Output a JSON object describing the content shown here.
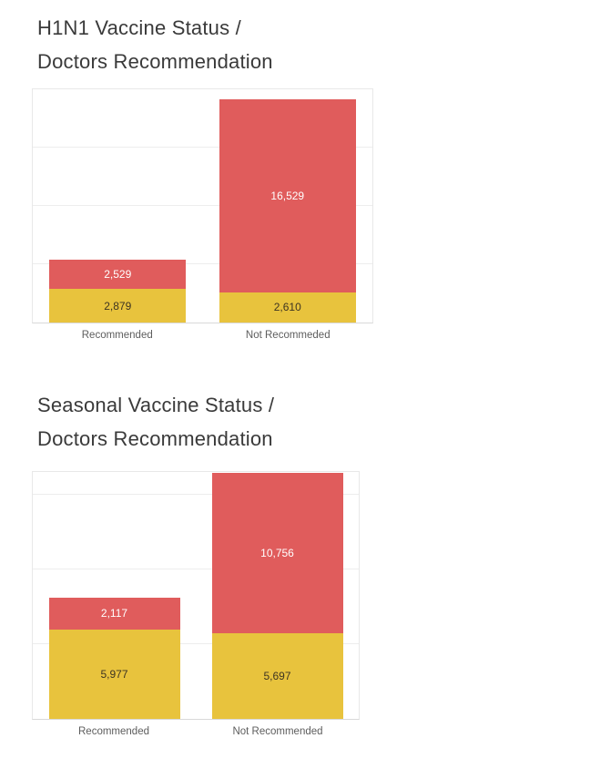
{
  "colors": {
    "red": "#e05c5c",
    "yellow": "#e8c33d",
    "title": "#3a3a3a",
    "category_label": "#5d5d5d",
    "grid": "#ededed",
    "label_on_red": "#ffffff",
    "label_on_yellow": "#3d3422"
  },
  "chart_data": [
    {
      "type": "bar",
      "stacked": true,
      "title_lines": [
        "H1N1 Vaccine Status /",
        "Doctors Recommendation"
      ],
      "categories": [
        "Recommended",
        "Not Recommeded"
      ],
      "series": [
        {
          "name": "bottom-yellow-segment",
          "color_key": "yellow",
          "label_color_key": "label_on_yellow",
          "values": [
            2879,
            2610
          ],
          "labels": [
            "2,879",
            "2,610"
          ]
        },
        {
          "name": "top-red-segment",
          "color_key": "red",
          "label_color_key": "label_on_red",
          "values": [
            2529,
            16529
          ],
          "labels": [
            "2,529",
            "16,529"
          ]
        }
      ],
      "ylim": [
        0,
        20000
      ],
      "grid_step": 5000,
      "grid": true,
      "legend": "none"
    },
    {
      "type": "bar",
      "stacked": true,
      "title_lines": [
        "Seasonal Vaccine Status /",
        "Doctors Recommendation"
      ],
      "categories": [
        "Recommended",
        "Not Recommended"
      ],
      "series": [
        {
          "name": "bottom-yellow-segment",
          "color_key": "yellow",
          "label_color_key": "label_on_yellow",
          "values": [
            5977,
            5697
          ],
          "labels": [
            "5,977",
            "5,697"
          ]
        },
        {
          "name": "top-red-segment",
          "color_key": "red",
          "label_color_key": "label_on_red",
          "values": [
            2117,
            10756
          ],
          "labels": [
            "2,117",
            "10,756"
          ]
        }
      ],
      "ylim": [
        0,
        16500
      ],
      "grid_step": 5000,
      "grid": true,
      "legend": "none"
    }
  ]
}
